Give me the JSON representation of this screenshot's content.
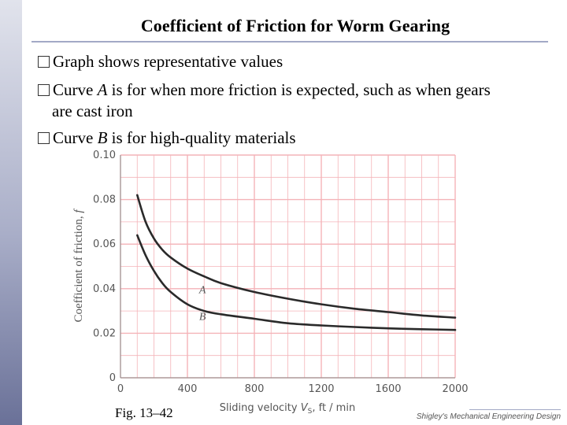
{
  "title": "Coefficient of Friction for Worm Gearing",
  "bullets": {
    "b1": "Graph shows representative values",
    "b2_pre": "Curve ",
    "b2_var": "A",
    "b2_post": " is for when more friction is expected, such as when gears",
    "b2_cont": "are cast iron",
    "b3_pre": "Curve ",
    "b3_var": "B",
    "b3_post": " is for high-quality materials"
  },
  "figure_label": "Fig. 13–42",
  "credit": "Shigley's Mechanical Engineering Design",
  "chart_data": {
    "type": "line",
    "xlabel": "Sliding velocity V_S, ft / min",
    "ylabel": "Coefficient of friction, f",
    "xlim": [
      0,
      2000
    ],
    "ylim": [
      0,
      0.1
    ],
    "xticks": [
      0,
      400,
      800,
      1200,
      1600,
      2000
    ],
    "yticks": [
      "0",
      "0.02",
      "0.04",
      "0.06",
      "0.08",
      "0.10"
    ],
    "grid": true,
    "colors": {
      "grid": "#f4b3b8",
      "curve": "#2a2a2a",
      "axis_text": "#555555"
    },
    "series": [
      {
        "name": "A",
        "x": [
          100,
          150,
          200,
          250,
          300,
          400,
          500,
          600,
          800,
          1000,
          1200,
          1400,
          1600,
          1800,
          2000
        ],
        "values": [
          0.082,
          0.07,
          0.0625,
          0.0575,
          0.054,
          0.049,
          0.0455,
          0.0425,
          0.0385,
          0.0355,
          0.033,
          0.031,
          0.0295,
          0.028,
          0.027
        ]
      },
      {
        "name": "B",
        "x": [
          100,
          150,
          200,
          250,
          300,
          400,
          500,
          600,
          800,
          1000,
          1200,
          1400,
          1600,
          1800,
          2000
        ],
        "values": [
          0.064,
          0.055,
          0.048,
          0.0425,
          0.0385,
          0.033,
          0.03,
          0.0285,
          0.0265,
          0.0245,
          0.0235,
          0.0228,
          0.0222,
          0.0218,
          0.0215
        ]
      }
    ]
  }
}
